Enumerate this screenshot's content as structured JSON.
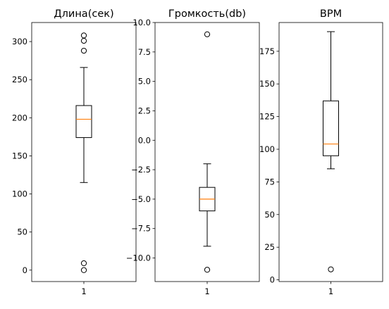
{
  "chart_data": [
    {
      "type": "box",
      "title": "Длина(сек)",
      "categories": [
        "1"
      ],
      "yticks": [
        0,
        50,
        100,
        150,
        200,
        250,
        300
      ],
      "ylim": [
        -15,
        325
      ],
      "box": {
        "whisker_low": 115,
        "q1": 174,
        "median": 198,
        "q3": 216,
        "whisker_high": 266
      },
      "outliers": [
        308,
        301,
        288,
        9,
        0
      ]
    },
    {
      "type": "box",
      "title": "Громкость(db)",
      "categories": [
        "1"
      ],
      "yticks": [
        10.0,
        7.5,
        5.0,
        2.5,
        0.0,
        -2.5,
        -5.0,
        -7.5,
        -10.0
      ],
      "ytick_labels": [
        "10.0",
        "7.5",
        "5.0",
        "2.5",
        "0.0",
        "−2.5",
        "−5.0",
        "−7.5",
        "−10.0"
      ],
      "ylim": [
        -12,
        10
      ],
      "box": {
        "whisker_low": -9,
        "q1": -6,
        "median": -5,
        "q3": -4,
        "whisker_high": -2
      },
      "outliers": [
        9,
        -11
      ]
    },
    {
      "type": "box",
      "title": "BPM",
      "categories": [
        "1"
      ],
      "yticks": [
        0,
        25,
        50,
        75,
        100,
        125,
        150,
        175
      ],
      "ylim": [
        -1.3,
        197
      ],
      "box": {
        "whisker_low": 85,
        "q1": 95,
        "median": 104,
        "q3": 137,
        "whisker_high": 190
      },
      "outliers": [
        8
      ]
    }
  ],
  "colors": {
    "median": "#ff7f0e",
    "box": "#000000",
    "axes": "#000000"
  }
}
